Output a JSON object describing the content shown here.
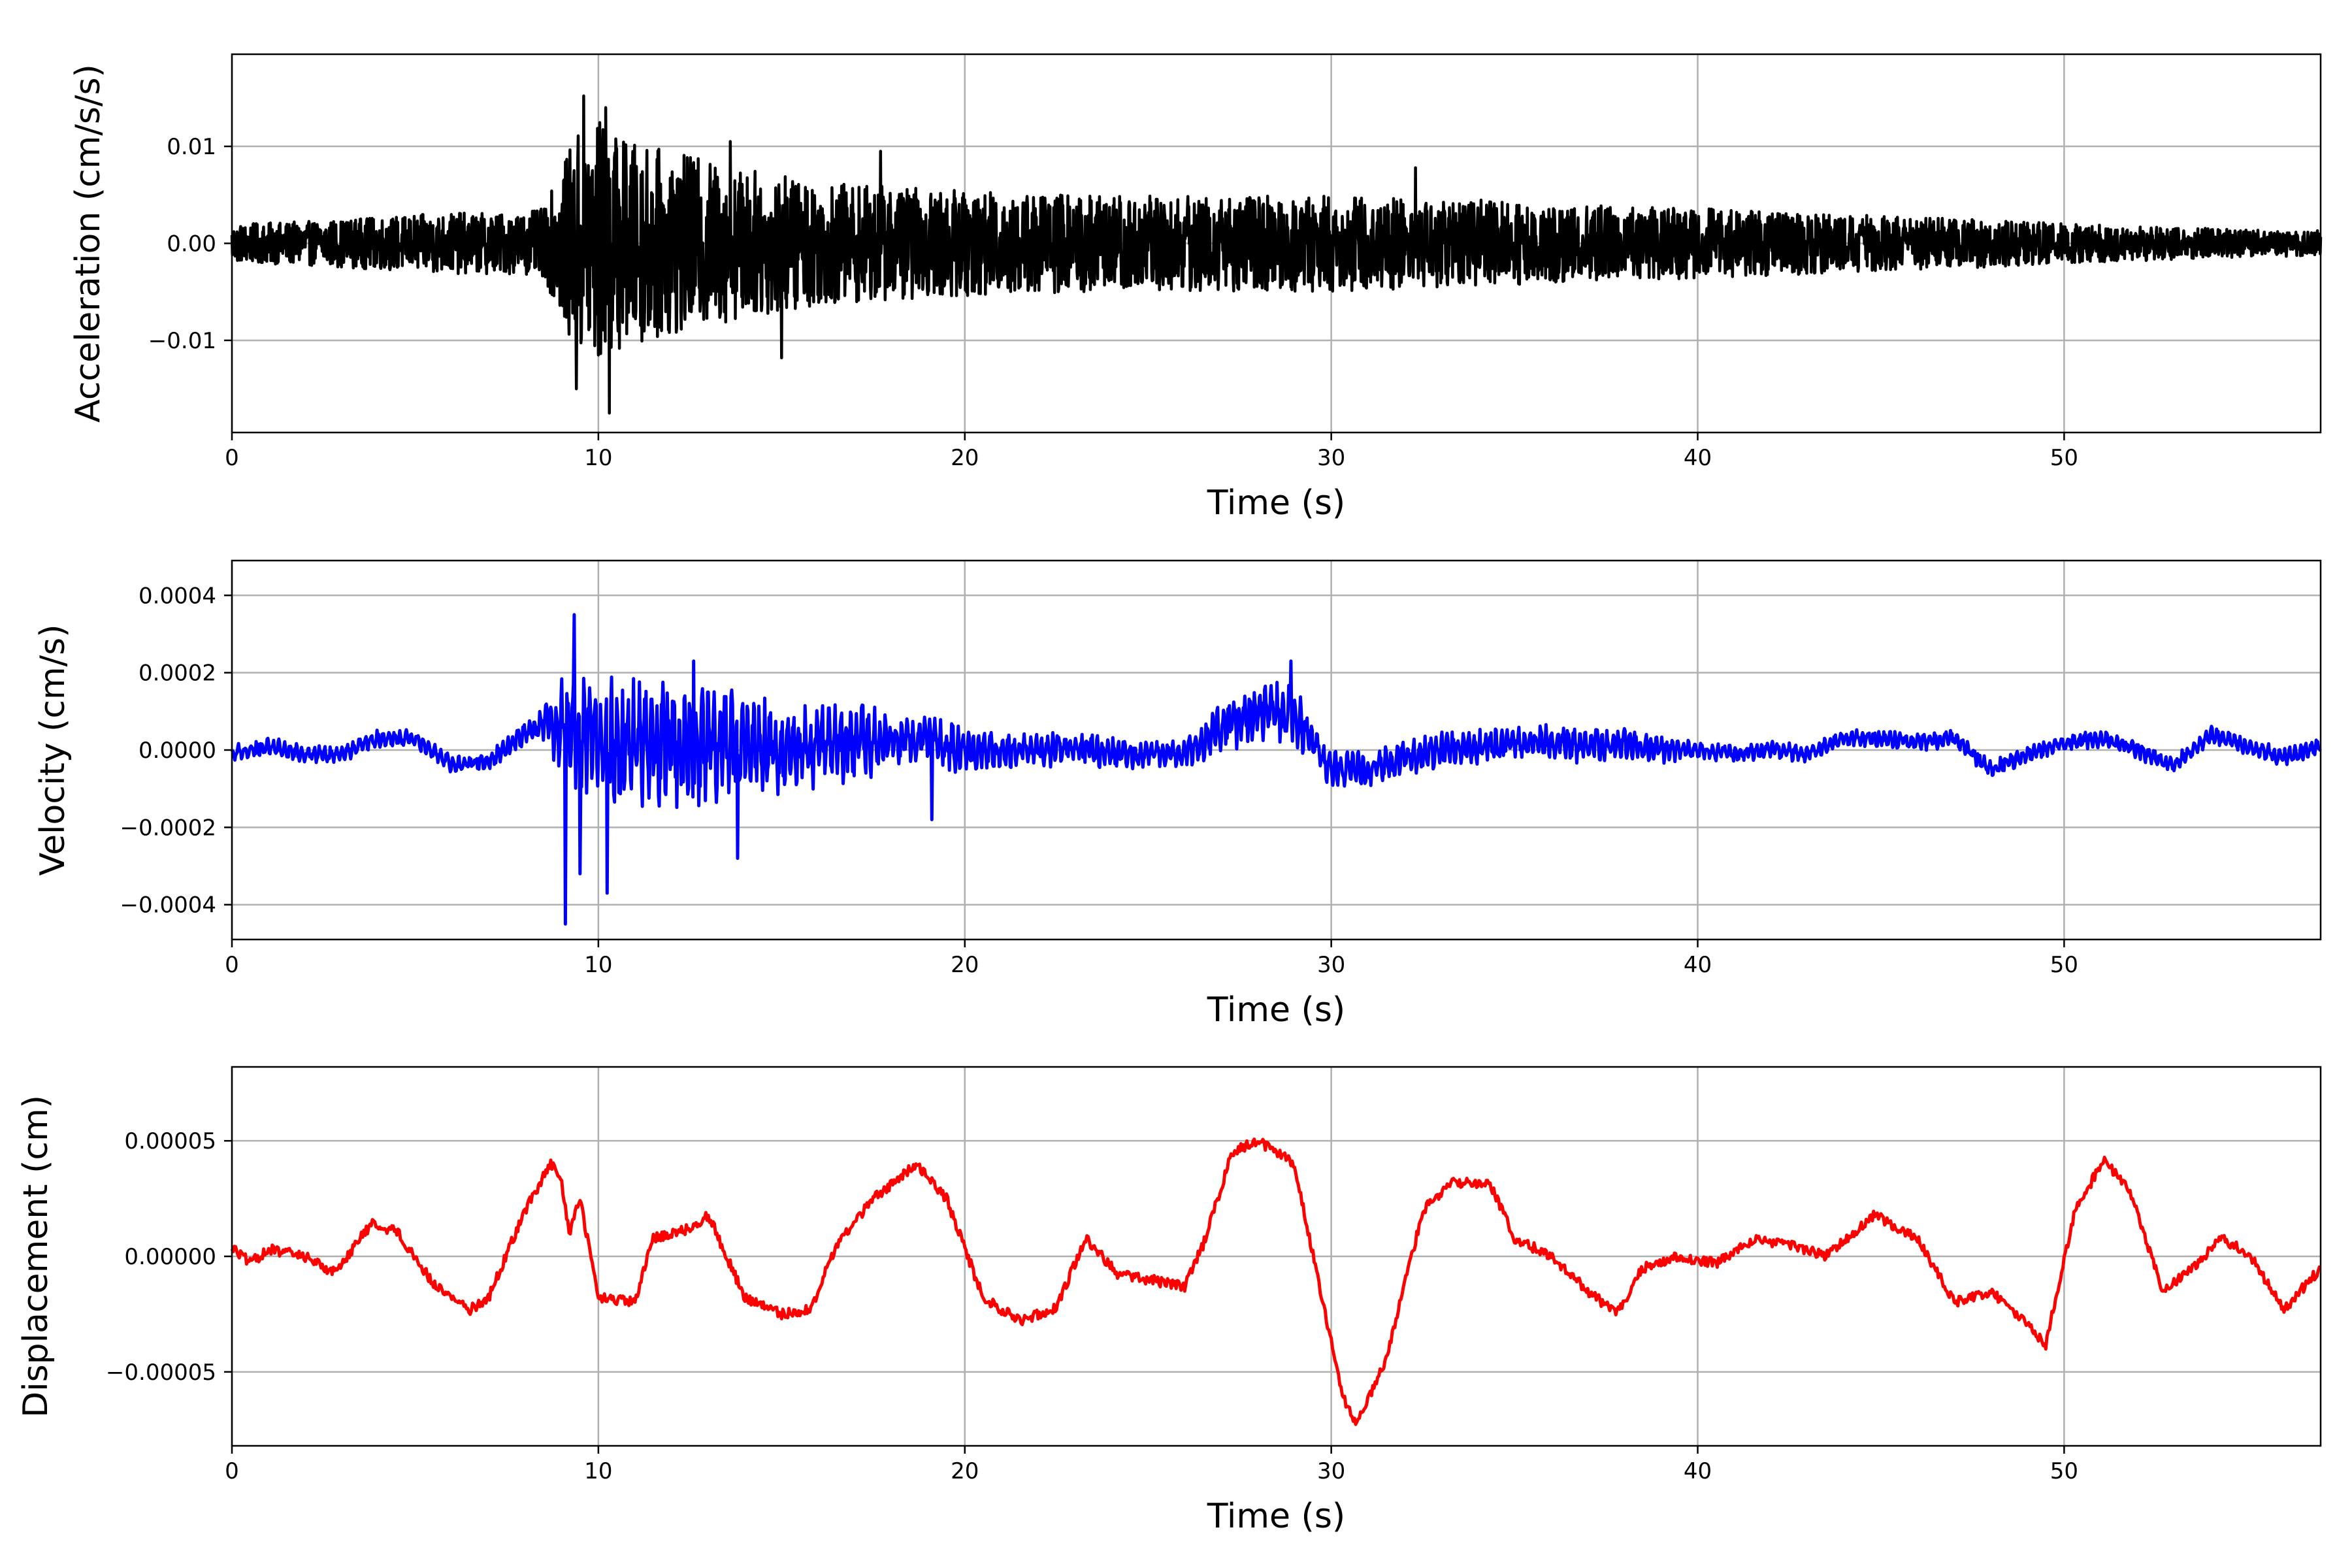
{
  "chart_data": [
    {
      "type": "line",
      "xlabel": "Time (s)",
      "ylabel": "Acceleration (cm/s/s)",
      "xlim": [
        0,
        57
      ],
      "ylim": [
        -0.0195,
        0.0195
      ],
      "xticks": [
        0,
        10,
        20,
        30,
        40,
        50
      ],
      "xtick_labels": [
        "0",
        "10",
        "20",
        "30",
        "40",
        "50"
      ],
      "yticks": [
        -0.01,
        0.0,
        0.01
      ],
      "ytick_labels": [
        "−0.01",
        "0.00",
        "0.01"
      ],
      "grid": true,
      "color": "#000000",
      "series": [
        {
          "x": [
            0,
            2,
            4,
            6,
            8,
            8.5,
            9,
            9.5,
            10,
            10.5,
            11,
            12,
            13,
            14,
            15,
            16,
            17,
            18,
            20,
            22,
            24,
            26,
            28,
            30,
            32,
            34,
            36,
            38,
            40,
            42,
            44,
            46,
            48,
            50,
            52,
            54,
            56,
            57
          ],
          "envelope": [
            0.0022,
            0.0025,
            0.003,
            0.0035,
            0.0035,
            0.004,
            0.0085,
            0.0135,
            0.0145,
            0.0125,
            0.0115,
            0.0105,
            0.0095,
            0.0085,
            0.008,
            0.007,
            0.0068,
            0.0065,
            0.006,
            0.0058,
            0.0056,
            0.0055,
            0.0055,
            0.0055,
            0.0052,
            0.005,
            0.0045,
            0.0042,
            0.004,
            0.0037,
            0.0033,
            0.003,
            0.0027,
            0.0023,
            0.002,
            0.0017,
            0.0015,
            0.0015
          ]
        }
      ],
      "peaks": [
        {
          "t": 9.6,
          "v": 0.0152
        },
        {
          "t": 10.3,
          "v": -0.0175
        },
        {
          "t": 10.2,
          "v": 0.014
        },
        {
          "t": 9.4,
          "v": -0.015
        },
        {
          "t": 13.6,
          "v": 0.0105
        },
        {
          "t": 15.0,
          "v": -0.0118
        },
        {
          "t": 17.7,
          "v": 0.0095
        },
        {
          "t": 32.3,
          "v": 0.0078
        }
      ]
    },
    {
      "type": "line",
      "xlabel": "Time (s)",
      "ylabel": "Velocity (cm/s)",
      "xlim": [
        0,
        57
      ],
      "ylim": [
        -0.00049,
        0.00049
      ],
      "xticks": [
        0,
        10,
        20,
        30,
        40,
        50
      ],
      "xtick_labels": [
        "0",
        "10",
        "20",
        "30",
        "40",
        "50"
      ],
      "yticks": [
        -0.0004,
        -0.0002,
        0.0,
        0.0002,
        0.0004
      ],
      "ytick_labels": [
        "−0.0004",
        "−0.0002",
        "0.0000",
        "0.0002",
        "0.0004"
      ],
      "grid": true,
      "color": "#0000ff",
      "series": [
        {
          "x": [
            0,
            1,
            2,
            3,
            4,
            5,
            6,
            7,
            8,
            8.5,
            9,
            10,
            11,
            12,
            13,
            14,
            15,
            16,
            17,
            18,
            19,
            20,
            21,
            22,
            23,
            24,
            25,
            26,
            27,
            28,
            29,
            30,
            31,
            32,
            33,
            34,
            35,
            36,
            37,
            38,
            39,
            40,
            41,
            42,
            43,
            44,
            45,
            46,
            47,
            48,
            49,
            50,
            51,
            52,
            53,
            54,
            55,
            56,
            57
          ],
          "trend": [
            -1e-05,
            1e-05,
            -1e-05,
            -1e-05,
            3e-05,
            3e-05,
            -4e-05,
            -3e-05,
            4e-05,
            7e-05,
            6e-05,
            1e-05,
            1e-05,
            1e-05,
            2e-05,
            1e-05,
            0.0,
            1e-05,
            3e-05,
            2e-05,
            3e-05,
            0.0,
            0.0,
            0.0,
            1e-05,
            -1e-05,
            -1e-05,
            -1e-05,
            6e-05,
            0.0001,
            9e-05,
            -5e-05,
            -5e-05,
            -2e-05,
            0.0,
            1e-05,
            2e-05,
            2e-05,
            1e-05,
            2e-05,
            0.0,
            0.0,
            -1e-05,
            0.0,
            -1e-05,
            3e-05,
            3e-05,
            2e-05,
            3e-05,
            -5e-05,
            -1e-05,
            2e-05,
            3e-05,
            0.0,
            -4e-05,
            4e-05,
            1e-05,
            -2e-05,
            1e-05
          ],
          "amplitude": [
            2e-05,
            2e-05,
            2e-05,
            2e-05,
            2e-05,
            2e-05,
            2e-05,
            2e-05,
            3e-05,
            4e-05,
            0.00012,
            0.00015,
            0.00015,
            0.00015,
            0.00014,
            0.00012,
            0.0001,
            9e-05,
            0.0001,
            6e-05,
            5e-05,
            6e-05,
            4e-05,
            4e-05,
            4e-05,
            4e-05,
            3e-05,
            3e-05,
            6e-05,
            7e-05,
            7e-05,
            4e-05,
            4e-05,
            4e-05,
            4e-05,
            4e-05,
            4e-05,
            4e-05,
            4e-05,
            4e-05,
            3e-05,
            2e-05,
            2e-05,
            2e-05,
            2e-05,
            2e-05,
            2e-05,
            2e-05,
            2e-05,
            2e-05,
            2e-05,
            2e-05,
            2e-05,
            2e-05,
            2e-05,
            2e-05,
            2e-05,
            2e-05,
            2e-05
          ]
        }
      ],
      "peaks": [
        {
          "t": 9.1,
          "v": -0.00045
        },
        {
          "t": 9.35,
          "v": 0.00035
        },
        {
          "t": 9.5,
          "v": -0.00032
        },
        {
          "t": 10.25,
          "v": -0.00037
        },
        {
          "t": 12.6,
          "v": 0.00023
        },
        {
          "t": 13.8,
          "v": -0.00028
        },
        {
          "t": 19.1,
          "v": -0.00018
        },
        {
          "t": 28.9,
          "v": 0.00023
        }
      ]
    },
    {
      "type": "line",
      "xlabel": "Time (s)",
      "ylabel": "Displacement (cm)",
      "xlim": [
        0,
        57
      ],
      "ylim": [
        -8.2e-05,
        8.2e-05
      ],
      "xticks": [
        0,
        10,
        20,
        30,
        40,
        50
      ],
      "xtick_labels": [
        "0",
        "10",
        "20",
        "30",
        "40",
        "50"
      ],
      "yticks": [
        -5e-05,
        0.0,
        5e-05
      ],
      "ytick_labels": [
        "−0.00005",
        "0.00000",
        "0.00005"
      ],
      "grid": true,
      "color": "#ff0000",
      "series": [
        {
          "x": [
            0,
            0.5,
            1,
            2,
            2.8,
            3.8,
            4.5,
            5.5,
            6.5,
            7,
            8,
            8.7,
            9.0,
            9.2,
            9.5,
            10,
            11,
            11.5,
            12.5,
            13,
            14,
            15,
            15.8,
            16.5,
            17.5,
            18.7,
            19.5,
            20.5,
            21.5,
            22.5,
            23.3,
            24.2,
            25,
            26,
            26.5,
            27.3,
            28,
            29,
            29.7,
            30.3,
            30.7,
            31.5,
            32.5,
            33.3,
            34.3,
            35,
            36,
            37,
            37.8,
            38.5,
            39.5,
            40.5,
            41.5,
            42.5,
            43.5,
            44.8,
            46,
            47,
            48,
            48.7,
            49.5,
            50.3,
            51.1,
            51.8,
            52.7,
            53.5,
            54.3,
            55.1,
            56,
            57
          ],
          "values": [
            4e-06,
            -3e-06,
            3e-06,
            0.0,
            -7e-06,
            1.4e-05,
            1.1e-05,
            -1.2e-05,
            -2.3e-05,
            -1.8e-05,
            2e-05,
            4e-05,
            3.2e-05,
            1e-05,
            2.5e-05,
            -1.8e-05,
            -2e-05,
            8e-06,
            1.2e-05,
            1.8e-05,
            -1.8e-05,
            -2.5e-05,
            -2.3e-05,
            5e-06,
            2.5e-05,
            4e-05,
            2.5e-05,
            -1.8e-05,
            -2.8e-05,
            -2.2e-05,
            8e-06,
            -8e-06,
            -1e-05,
            -1.3e-05,
            5e-06,
            4.5e-05,
            5e-05,
            4e-05,
            -1.5e-05,
            -6e-05,
            -7.3e-05,
            -4.5e-05,
            2e-05,
            3.2e-05,
            3.2e-05,
            8e-06,
            0.0,
            -1.5e-05,
            -2.5e-05,
            -5e-06,
            0.0,
            -3e-06,
            7e-06,
            5e-06,
            0.0,
            1.8e-05,
            8e-06,
            -2e-05,
            -1.5e-05,
            -2.5e-05,
            -3.8e-05,
            2e-05,
            4.2e-05,
            2.8e-05,
            -1.5e-05,
            -5e-06,
            8e-06,
            0.0,
            -2.3e-05,
            -5e-06
          ]
        }
      ]
    }
  ]
}
